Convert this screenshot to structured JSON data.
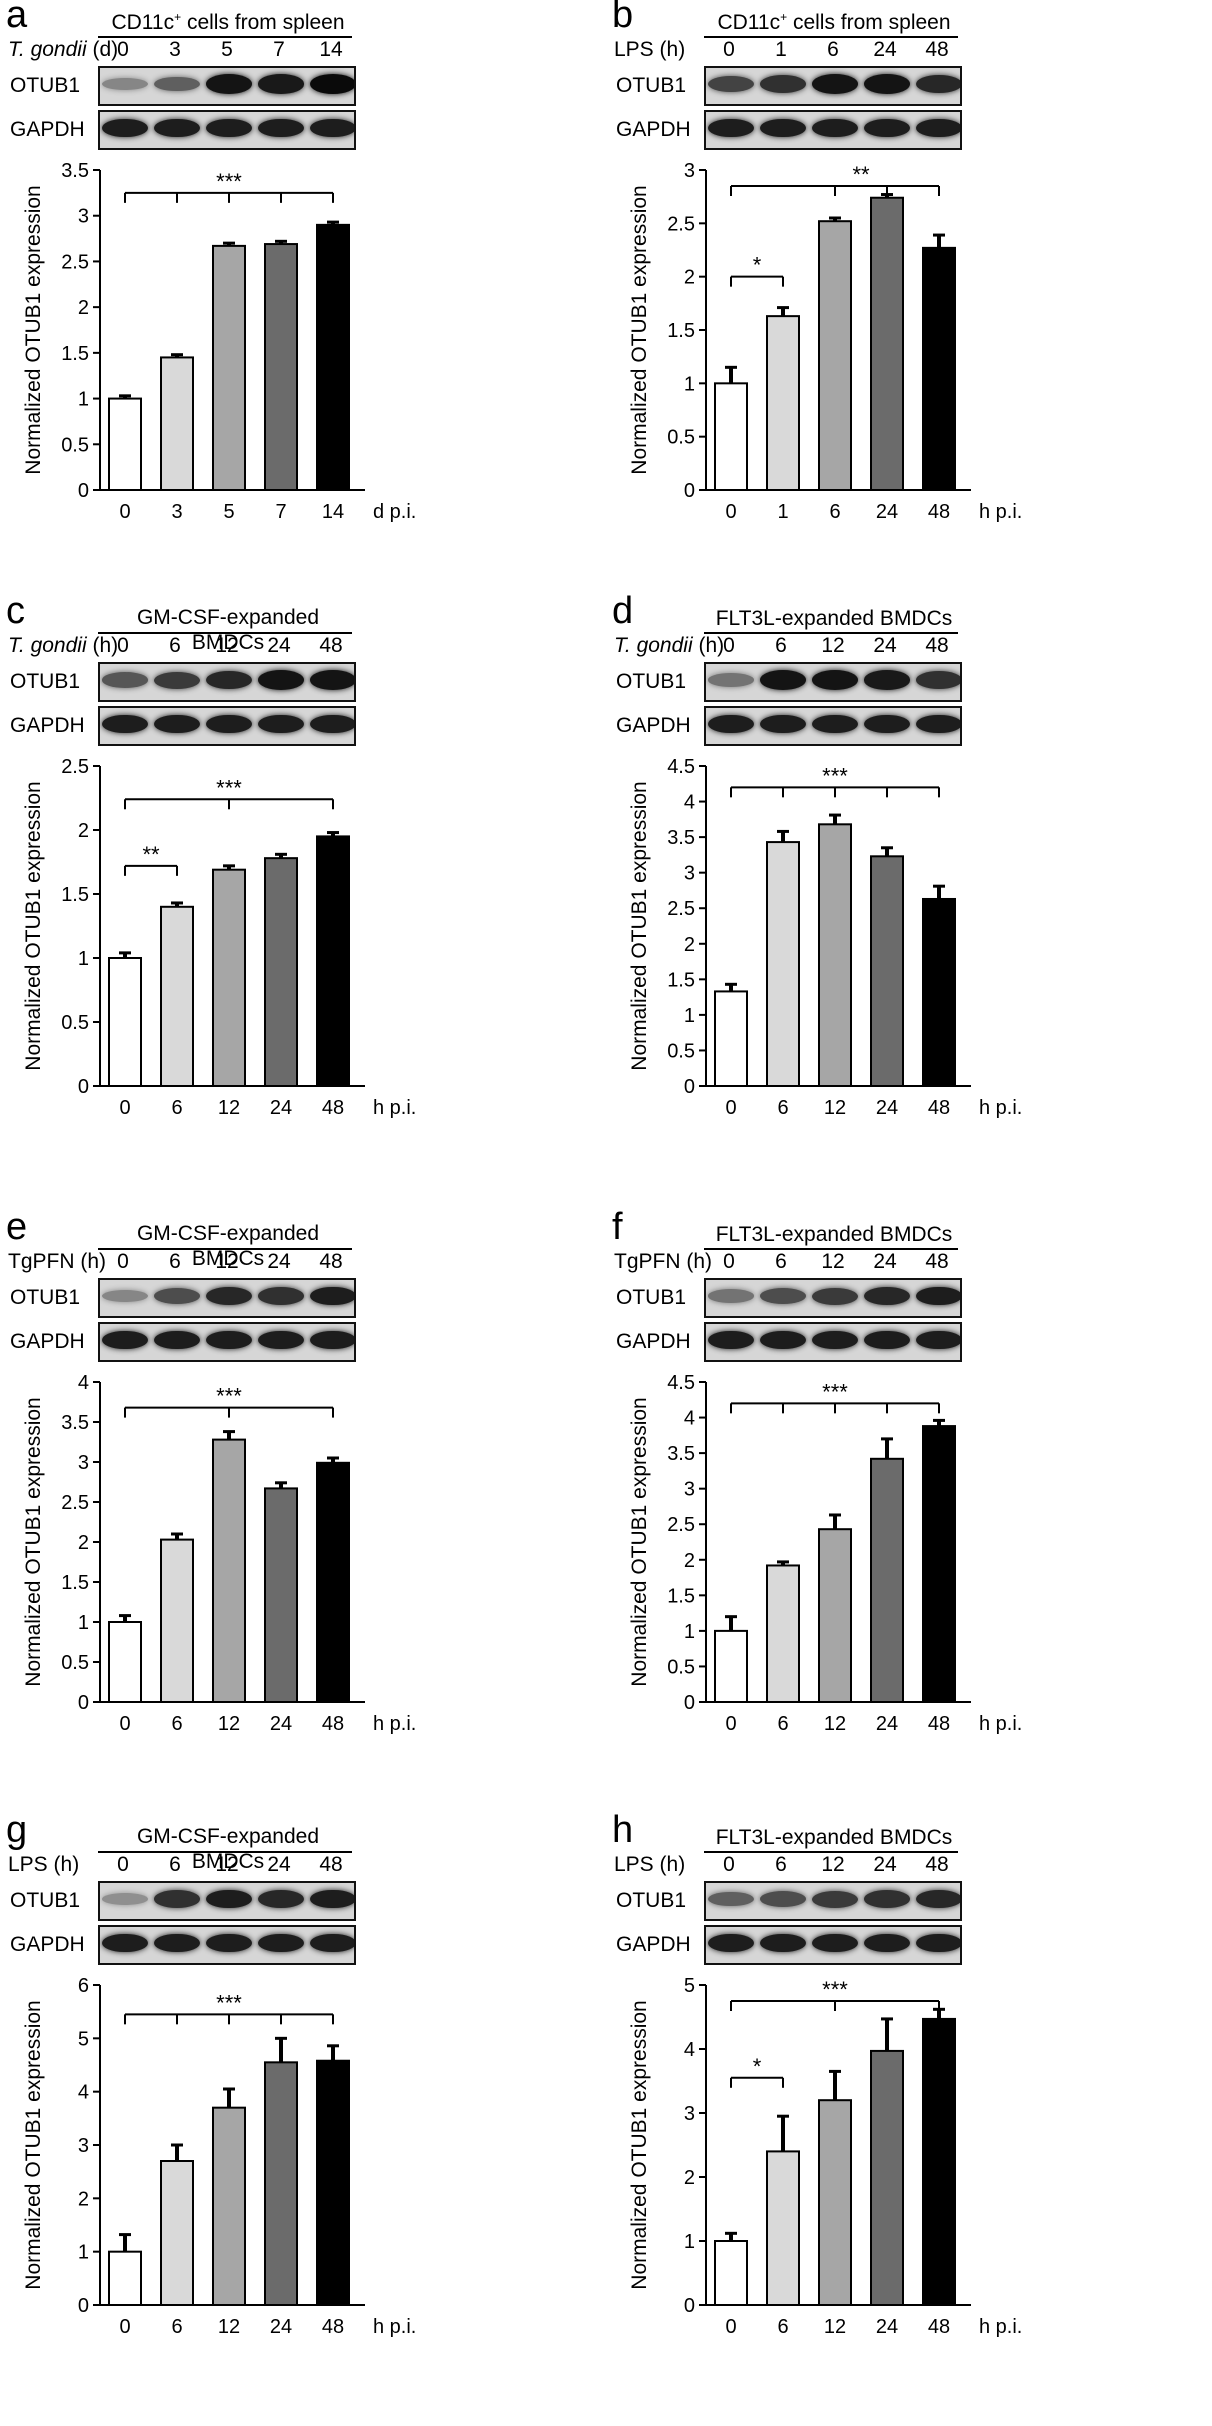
{
  "panels": [
    {
      "letter": "a",
      "blot_title": "CD11c",
      "blot_title_sup": "+",
      "blot_title_rest": " cells from spleen",
      "condition_label_italic": "T. gondii",
      "condition_label_rest": " (d)",
      "lanes": [
        "0",
        "3",
        "5",
        "7",
        "14"
      ],
      "strip_labels": [
        "OTUB1",
        "GAPDH"
      ],
      "otub1_intensity": [
        0.35,
        0.55,
        0.95,
        0.92,
        1.0
      ]
    },
    {
      "letter": "b",
      "blot_title": "CD11c",
      "blot_title_sup": "+",
      "blot_title_rest": " cells from spleen",
      "condition_label_italic": "",
      "condition_label_rest": "LPS (h)",
      "lanes": [
        "0",
        "1",
        "6",
        "24",
        "48"
      ],
      "strip_labels": [
        "OTUB1",
        "GAPDH"
      ],
      "otub1_intensity": [
        0.7,
        0.8,
        0.95,
        0.95,
        0.85
      ]
    },
    {
      "letter": "c",
      "blot_title": "GM-CSF-expanded BMDCs",
      "blot_title_sup": "",
      "blot_title_rest": "",
      "condition_label_italic": "T. gondii",
      "condition_label_rest": " (h)",
      "lanes": [
        "0",
        "6",
        "12",
        "24",
        "48"
      ],
      "strip_labels": [
        "OTUB1",
        "GAPDH"
      ],
      "otub1_intensity": [
        0.6,
        0.75,
        0.85,
        0.95,
        0.95
      ]
    },
    {
      "letter": "d",
      "blot_title": "FLT3L-expanded BMDCs",
      "blot_title_sup": "",
      "blot_title_rest": "",
      "condition_label_italic": "T. gondii",
      "condition_label_rest": " (h)",
      "lanes": [
        "0",
        "6",
        "12",
        "24",
        "48"
      ],
      "strip_labels": [
        "OTUB1",
        "GAPDH"
      ],
      "otub1_intensity": [
        0.45,
        0.95,
        0.95,
        0.92,
        0.8
      ]
    },
    {
      "letter": "e",
      "blot_title": "GM-CSF-expanded BMDCs",
      "blot_title_sup": "",
      "blot_title_rest": "",
      "condition_label_italic": "",
      "condition_label_rest": "TgPFN (h)",
      "lanes": [
        "0",
        "6",
        "12",
        "24",
        "48"
      ],
      "strip_labels": [
        "OTUB1",
        "GAPDH"
      ],
      "otub1_intensity": [
        0.35,
        0.65,
        0.85,
        0.8,
        0.9
      ]
    },
    {
      "letter": "f",
      "blot_title": "FLT3L-expanded BMDCs",
      "blot_title_sup": "",
      "blot_title_rest": "",
      "condition_label_italic": "",
      "condition_label_rest": "TgPFN (h)",
      "lanes": [
        "0",
        "6",
        "12",
        "24",
        "48"
      ],
      "strip_labels": [
        "OTUB1",
        "GAPDH"
      ],
      "otub1_intensity": [
        0.45,
        0.65,
        0.75,
        0.85,
        0.9
      ]
    },
    {
      "letter": "g",
      "blot_title": "GM-CSF-expanded BMDCs",
      "blot_title_sup": "",
      "blot_title_rest": "",
      "condition_label_italic": "",
      "condition_label_rest": "LPS (h)",
      "lanes": [
        "0",
        "6",
        "12",
        "24",
        "48"
      ],
      "strip_labels": [
        "OTUB1",
        "GAPDH"
      ],
      "otub1_intensity": [
        0.3,
        0.8,
        0.9,
        0.85,
        0.9
      ]
    },
    {
      "letter": "h",
      "blot_title": "FLT3L-expanded BMDCs",
      "blot_title_sup": "",
      "blot_title_rest": "",
      "condition_label_italic": "",
      "condition_label_rest": "LPS (h)",
      "lanes": [
        "0",
        "6",
        "12",
        "24",
        "48"
      ],
      "strip_labels": [
        "OTUB1",
        "GAPDH"
      ],
      "otub1_intensity": [
        0.55,
        0.65,
        0.75,
        0.8,
        0.85
      ]
    }
  ],
  "bar_colors": [
    "#ffffff",
    "#d9d9d9",
    "#a6a6a6",
    "#6b6b6b",
    "#000000"
  ],
  "chart_data": [
    {
      "type": "bar",
      "panel": "a",
      "categories": [
        "0",
        "3",
        "5",
        "7",
        "14"
      ],
      "values": [
        1.0,
        1.45,
        2.67,
        2.69,
        2.9
      ],
      "errors": [
        0.03,
        0.03,
        0.03,
        0.03,
        0.03
      ],
      "ylabel": "Normalized OTUB1 expression",
      "xunit": "d p.i.",
      "ylim": [
        0,
        3.5
      ],
      "yticks": [
        "0",
        "0.5",
        "1",
        "1.5",
        "2",
        "2.5",
        "3",
        "3.5"
      ],
      "brackets": [
        {
          "from": 0,
          "to": 4,
          "ticks": [
            1,
            2,
            3
          ],
          "label": "***",
          "y": 3.25
        }
      ]
    },
    {
      "type": "bar",
      "panel": "b",
      "categories": [
        "0",
        "1",
        "6",
        "24",
        "48"
      ],
      "values": [
        1.0,
        1.63,
        2.52,
        2.74,
        2.27
      ],
      "errors": [
        0.15,
        0.08,
        0.03,
        0.03,
        0.12
      ],
      "ylabel": "Normalized OTUB1 expression",
      "xunit": "h p.i.",
      "ylim": [
        0,
        3
      ],
      "yticks": [
        "0",
        "0.5",
        "1",
        "1.5",
        "2",
        "2.5",
        "3"
      ],
      "brackets": [
        {
          "from": 0,
          "to": 4,
          "ticks": [
            2,
            3
          ],
          "label": "**",
          "y": 2.85
        },
        {
          "from": 0,
          "to": 1,
          "ticks": [],
          "label": "*",
          "y": 2.0
        }
      ]
    },
    {
      "type": "bar",
      "panel": "c",
      "categories": [
        "0",
        "6",
        "12",
        "24",
        "48"
      ],
      "values": [
        1.0,
        1.4,
        1.69,
        1.78,
        1.95
      ],
      "errors": [
        0.04,
        0.03,
        0.03,
        0.03,
        0.03
      ],
      "ylabel": "Normalized OTUB1 expression",
      "xunit": "h p.i.",
      "ylim": [
        0,
        2.5
      ],
      "yticks": [
        "0",
        "0.5",
        "1",
        "1.5",
        "2",
        "2.5"
      ],
      "brackets": [
        {
          "from": 0,
          "to": 4,
          "ticks": [
            2
          ],
          "label": "***",
          "y": 2.24
        },
        {
          "from": 0,
          "to": 1,
          "ticks": [],
          "label": "**",
          "y": 1.72
        }
      ]
    },
    {
      "type": "bar",
      "panel": "d",
      "categories": [
        "0",
        "6",
        "12",
        "24",
        "48"
      ],
      "values": [
        1.33,
        3.43,
        3.68,
        3.23,
        2.63
      ],
      "errors": [
        0.1,
        0.15,
        0.13,
        0.12,
        0.18
      ],
      "ylabel": "Normalized OTUB1 expression",
      "xunit": "h p.i.",
      "ylim": [
        0,
        4.5
      ],
      "yticks": [
        "0",
        "0.5",
        "1",
        "1.5",
        "2",
        "2.5",
        "3",
        "3.5",
        "4",
        "4.5"
      ],
      "brackets": [
        {
          "from": 0,
          "to": 4,
          "ticks": [
            1,
            2,
            3
          ],
          "label": "***",
          "y": 4.2
        }
      ]
    },
    {
      "type": "bar",
      "panel": "e",
      "categories": [
        "0",
        "6",
        "12",
        "24",
        "48"
      ],
      "values": [
        1.0,
        2.03,
        3.28,
        2.67,
        2.99
      ],
      "errors": [
        0.08,
        0.07,
        0.1,
        0.07,
        0.06
      ],
      "ylabel": "Normalized OTUB1 expression",
      "xunit": "h p.i.",
      "ylim": [
        0,
        4
      ],
      "yticks": [
        "0",
        "0.5",
        "1",
        "1.5",
        "2",
        "2.5",
        "3",
        "3.5",
        "4"
      ],
      "brackets": [
        {
          "from": 0,
          "to": 4,
          "ticks": [
            2
          ],
          "label": "***",
          "y": 3.68
        }
      ]
    },
    {
      "type": "bar",
      "panel": "f",
      "categories": [
        "0",
        "6",
        "12",
        "24",
        "48"
      ],
      "values": [
        1.0,
        1.92,
        2.43,
        3.42,
        3.88
      ],
      "errors": [
        0.2,
        0.05,
        0.2,
        0.28,
        0.08
      ],
      "ylabel": "Normalized OTUB1 expression",
      "xunit": "h p.i.",
      "ylim": [
        0,
        4.5
      ],
      "yticks": [
        "0",
        "0.5",
        "1",
        "1.5",
        "2",
        "2.5",
        "3",
        "3.5",
        "4",
        "4.5"
      ],
      "brackets": [
        {
          "from": 0,
          "to": 4,
          "ticks": [
            1,
            2,
            3
          ],
          "label": "***",
          "y": 4.2
        }
      ]
    },
    {
      "type": "bar",
      "panel": "g",
      "categories": [
        "0",
        "6",
        "12",
        "24",
        "48"
      ],
      "values": [
        1.0,
        2.7,
        3.7,
        4.55,
        4.58
      ],
      "errors": [
        0.32,
        0.3,
        0.35,
        0.45,
        0.28
      ],
      "ylabel": "Normalized OTUB1 expression",
      "xunit": "h p.i.",
      "ylim": [
        0,
        6
      ],
      "yticks": [
        "0",
        "1",
        "2",
        "3",
        "4",
        "5",
        "6"
      ],
      "brackets": [
        {
          "from": 0,
          "to": 4,
          "ticks": [
            1,
            2,
            3
          ],
          "label": "***",
          "y": 5.45
        }
      ]
    },
    {
      "type": "bar",
      "panel": "h",
      "categories": [
        "0",
        "6",
        "12",
        "24",
        "48"
      ],
      "values": [
        1.0,
        2.4,
        3.2,
        3.97,
        4.47
      ],
      "errors": [
        0.12,
        0.55,
        0.45,
        0.5,
        0.15
      ],
      "ylabel": "Normalized OTUB1 expression",
      "xunit": "h p.i.",
      "ylim": [
        0,
        5
      ],
      "yticks": [
        "0",
        "1",
        "2",
        "3",
        "4",
        "5"
      ],
      "brackets": [
        {
          "from": 0,
          "to": 4,
          "ticks": [
            2
          ],
          "label": "***",
          "y": 4.75
        },
        {
          "from": 0,
          "to": 1,
          "ticks": [],
          "label": "*",
          "y": 3.55
        }
      ]
    }
  ]
}
